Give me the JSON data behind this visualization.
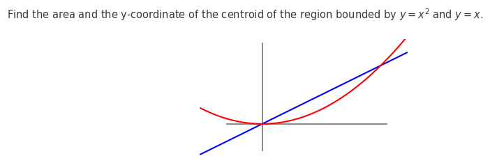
{
  "title_text": "Find the area and the y-coordinate of the centroid of the region bounded by $y = x^2$ and $y = x$.",
  "title_fontsize": 10.5,
  "title_color": "#3a3a3a",
  "background_color": "#ffffff",
  "line_color": "blue",
  "curve_color": "red",
  "axis_color": "#808080",
  "x_range": [
    -0.85,
    1.35
  ],
  "y_range": [
    -0.55,
    1.45
  ],
  "line_lw": 1.5,
  "curve_lw": 1.5,
  "axis_lw": 1.3,
  "x_axis_start": -0.3,
  "x_axis_end": 1.05,
  "y_axis_start": -0.45,
  "y_axis_end": 1.38,
  "curve_x_start": -0.52,
  "curve_x_end": 1.22
}
